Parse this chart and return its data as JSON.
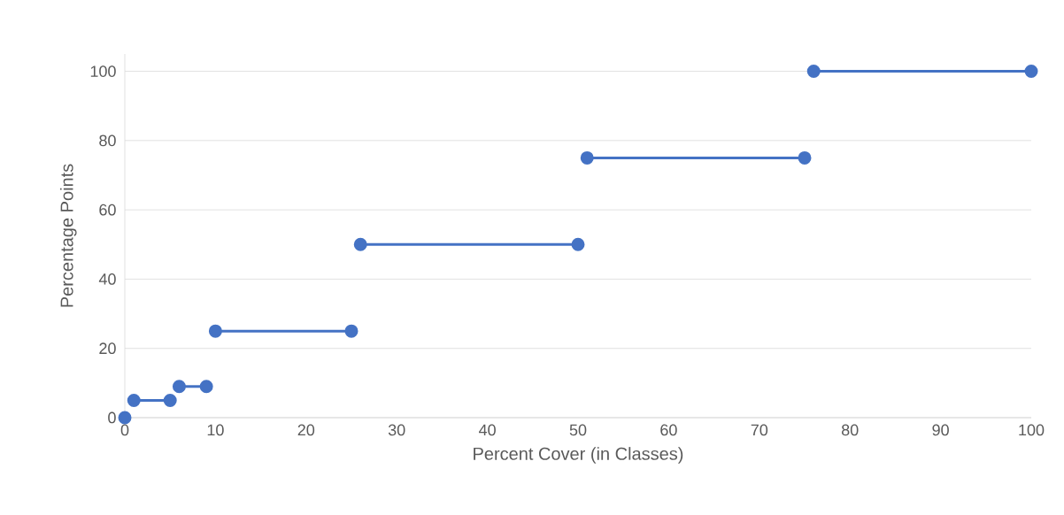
{
  "chart_data": {
    "type": "line",
    "xlabel": "Percent Cover (in Classes)",
    "ylabel": "Percentage Points",
    "xlim": [
      0,
      100
    ],
    "ylim": [
      0,
      105
    ],
    "xticks": [
      0,
      10,
      20,
      30,
      40,
      50,
      60,
      70,
      80,
      90,
      100
    ],
    "yticks": [
      0,
      20,
      40,
      60,
      80,
      100
    ],
    "grid": "y",
    "marker": "circle",
    "line_style": "solid",
    "series": [
      {
        "color": "#4472c4",
        "x": [
          0
        ],
        "values": [
          0
        ]
      },
      {
        "color": "#4472c4",
        "x": [
          1,
          5
        ],
        "values": [
          5,
          5
        ]
      },
      {
        "color": "#4472c4",
        "x": [
          6,
          9
        ],
        "values": [
          9,
          9
        ]
      },
      {
        "color": "#4472c4",
        "x": [
          10,
          25
        ],
        "values": [
          25,
          25
        ]
      },
      {
        "color": "#4472c4",
        "x": [
          26,
          50
        ],
        "values": [
          50,
          50
        ]
      },
      {
        "color": "#4472c4",
        "x": [
          51,
          75
        ],
        "values": [
          75,
          75
        ]
      },
      {
        "color": "#4472c4",
        "x": [
          76,
          100
        ],
        "values": [
          100,
          100
        ]
      }
    ]
  }
}
